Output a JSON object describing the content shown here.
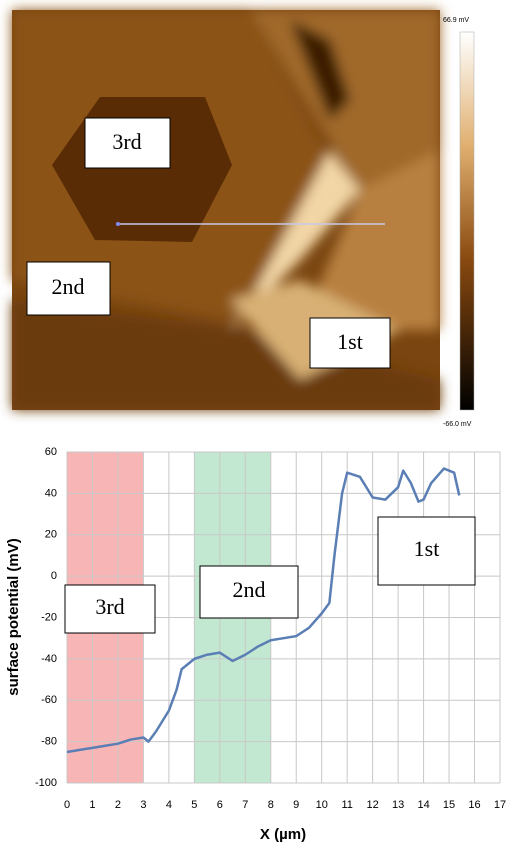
{
  "image": {
    "labels": [
      "3rd",
      "2nd",
      "1st"
    ],
    "colorbar_max": "66.9 mV",
    "colorbar_min": "-66.0 mV"
  },
  "chart_data": {
    "type": "line",
    "x_label": "X (µm)",
    "y_label": "surface potential (mV)",
    "x": [
      0,
      0.5,
      1,
      1.5,
      2,
      2.5,
      3,
      3.2,
      3.5,
      4,
      4.3,
      4.5,
      5,
      5.5,
      6,
      6.5,
      7,
      7.5,
      8,
      8.5,
      9,
      9.5,
      10,
      10.3,
      10.5,
      10.8,
      11,
      11.5,
      12,
      12.5,
      13,
      13.2,
      13.5,
      13.8,
      14,
      14.3,
      14.8,
      15.2,
      15.4
    ],
    "values": [
      -85,
      -84,
      -83,
      -82,
      -81,
      -79,
      -78,
      -80,
      -75,
      -65,
      -55,
      -45,
      -40,
      -38,
      -37,
      -41,
      -38,
      -34,
      -31,
      -30,
      -29,
      -25,
      -18,
      -13,
      10,
      40,
      50,
      48,
      38,
      37,
      43,
      51,
      45,
      36,
      37,
      45,
      52,
      50,
      39
    ],
    "color": "#5b7fb5",
    "xlim": [
      0,
      17
    ],
    "xticks": [
      0,
      1,
      2,
      3,
      4,
      5,
      6,
      7,
      8,
      9,
      10,
      11,
      12,
      13,
      14,
      15,
      16,
      17
    ],
    "ylim": [
      -100,
      60
    ],
    "yticks": [
      -100,
      -80,
      -60,
      -40,
      -20,
      0,
      20,
      40,
      60
    ],
    "grid": true,
    "shaded_regions": [
      {
        "xmin": 0,
        "xmax": 3,
        "color": "#f7a8a8"
      },
      {
        "xmin": 5,
        "xmax": 8,
        "color": "#b9e4c9"
      }
    ],
    "annotations": [
      "3rd",
      "2nd",
      "1st"
    ]
  }
}
